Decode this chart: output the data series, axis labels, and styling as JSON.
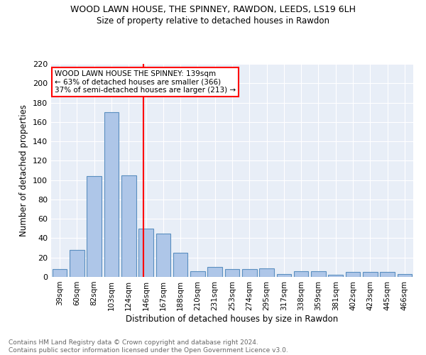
{
  "title": "WOOD LAWN HOUSE, THE SPINNEY, RAWDON, LEEDS, LS19 6LH",
  "subtitle": "Size of property relative to detached houses in Rawdon",
  "xlabel": "Distribution of detached houses by size in Rawdon",
  "ylabel": "Number of detached properties",
  "categories": [
    "39sqm",
    "60sqm",
    "82sqm",
    "103sqm",
    "124sqm",
    "146sqm",
    "167sqm",
    "188sqm",
    "210sqm",
    "231sqm",
    "253sqm",
    "274sqm",
    "295sqm",
    "317sqm",
    "338sqm",
    "359sqm",
    "381sqm",
    "402sqm",
    "423sqm",
    "445sqm",
    "466sqm"
  ],
  "values": [
    8,
    28,
    104,
    170,
    105,
    50,
    45,
    25,
    6,
    10,
    8,
    8,
    9,
    3,
    6,
    6,
    2,
    5,
    5,
    5,
    3
  ],
  "bar_color": "#aec6e8",
  "bar_edge_color": "#5a8fc0",
  "background_color": "#e8eef7",
  "annotation_text": "WOOD LAWN HOUSE THE SPINNEY: 139sqm\n← 63% of detached houses are smaller (366)\n37% of semi-detached houses are larger (213) →",
  "annotation_box_color": "white",
  "annotation_box_edge_color": "red",
  "footer": "Contains HM Land Registry data © Crown copyright and database right 2024.\nContains public sector information licensed under the Open Government Licence v3.0.",
  "ylim": [
    0,
    220
  ],
  "yticks": [
    0,
    20,
    40,
    60,
    80,
    100,
    120,
    140,
    160,
    180,
    200,
    220
  ],
  "red_line_x": 4.85
}
